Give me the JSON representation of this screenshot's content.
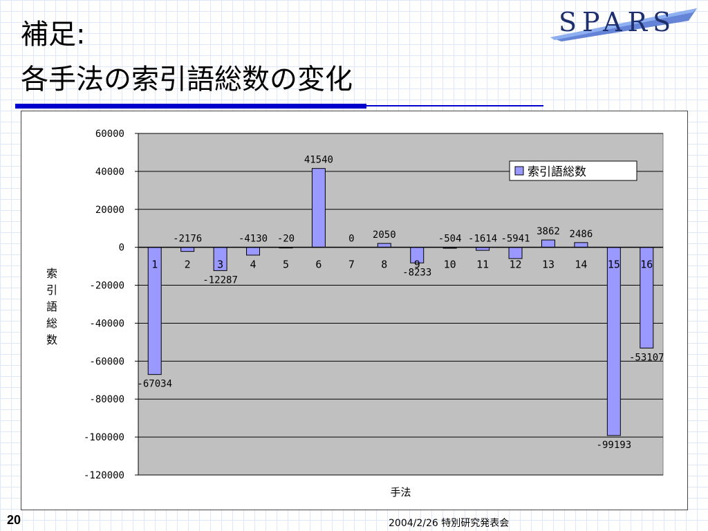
{
  "slide": {
    "title_line1": "補足:",
    "title_line2": "各手法の索引語総数の変化",
    "logo_text": "SPARS",
    "page_number": "20",
    "footer": "2004/2/26  特別研究発表会",
    "accent_color": "#0000cc",
    "logo_color": "#1e2f6e"
  },
  "chart_data": {
    "type": "bar",
    "categories": [
      "1",
      "2",
      "3",
      "4",
      "5",
      "6",
      "7",
      "8",
      "9",
      "10",
      "11",
      "12",
      "13",
      "14",
      "15",
      "16"
    ],
    "series": [
      {
        "name": "索引語総数",
        "values": [
          -67034,
          -2176,
          -12287,
          -4130,
          -20,
          41540,
          0,
          2050,
          -8233,
          -504,
          -1614,
          -5941,
          3862,
          2486,
          -99193,
          -53107
        ]
      }
    ],
    "xlabel": "手法",
    "ylabel": "索引語総数",
    "ylim": [
      -120000,
      60000
    ],
    "yticks": [
      60000,
      40000,
      20000,
      0,
      -20000,
      -40000,
      -60000,
      -80000,
      -100000,
      -120000
    ],
    "grid": true,
    "legend": "top-right",
    "bar_color": "#9999ff",
    "plot_bg": "#c0c0c0"
  }
}
